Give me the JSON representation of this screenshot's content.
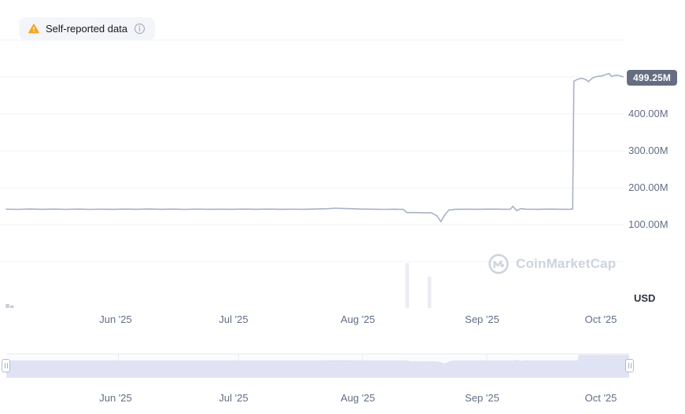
{
  "badge": {
    "text": "Self-reported data"
  },
  "watermark": {
    "text": "CoinMarketCap"
  },
  "colors": {
    "accent_line": "#a9b1c3",
    "current_badge_bg": "#656d80",
    "warning": "#f5a623",
    "axis_label": "#616e85",
    "grid": "#f1f3f7",
    "nav_fill": "#dfe3f3",
    "watermark": "#ced3dd"
  },
  "chart_data": {
    "type": "line",
    "title": "",
    "unit": "USD",
    "current_label": "499.25M",
    "yticks": [
      "400.00M",
      "300.00M",
      "200.00M",
      "100.00M"
    ],
    "ytick_values_m": [
      400,
      300,
      200,
      100
    ],
    "ylim_m": [
      0,
      600
    ],
    "xticks": [
      "Jun '25",
      "Jul '25",
      "Aug '25",
      "Sep '25",
      "Oct '25"
    ],
    "legend": "none",
    "grid": "horizontal",
    "series": [
      {
        "name": "Self-reported data",
        "unit": "millions USD",
        "points": [
          [
            0,
            142
          ],
          [
            3,
            141.5
          ],
          [
            6,
            142.4
          ],
          [
            9,
            141.7
          ],
          [
            12,
            142.2
          ],
          [
            15,
            141.5
          ],
          [
            18,
            142.1
          ],
          [
            21,
            141.4
          ],
          [
            24,
            142
          ],
          [
            27,
            141.6
          ],
          [
            30,
            142.2
          ],
          [
            33,
            141.6
          ],
          [
            36,
            142.3
          ],
          [
            39,
            141.7
          ],
          [
            42,
            142.1
          ],
          [
            45,
            141.5
          ],
          [
            48,
            142.2
          ],
          [
            51,
            141.7
          ],
          [
            54,
            142
          ],
          [
            57,
            141.6
          ],
          [
            60,
            142.1
          ],
          [
            63,
            141.7
          ],
          [
            66,
            142.2
          ],
          [
            69,
            141.6
          ],
          [
            72,
            142
          ],
          [
            75,
            141.7
          ],
          [
            78,
            142.4
          ],
          [
            81,
            143.2
          ],
          [
            83,
            144.6
          ],
          [
            85,
            143.9
          ],
          [
            87,
            143.1
          ],
          [
            89,
            142.4
          ],
          [
            92,
            142
          ],
          [
            95,
            141.5
          ],
          [
            98,
            141.9
          ],
          [
            100,
            141.2
          ],
          [
            101,
            132.5
          ],
          [
            103,
            132.8
          ],
          [
            105,
            132.2
          ],
          [
            107,
            132.6
          ],
          [
            108.5,
            124
          ],
          [
            109.5,
            108
          ],
          [
            110.5,
            127
          ],
          [
            111.5,
            139.5
          ],
          [
            113,
            141.6
          ],
          [
            116,
            142
          ],
          [
            119,
            141.6
          ],
          [
            122,
            142.1
          ],
          [
            125,
            141.8
          ],
          [
            127,
            142
          ],
          [
            127.6,
            149.5
          ],
          [
            128.6,
            138
          ],
          [
            129.6,
            143.5
          ],
          [
            131,
            142
          ],
          [
            134,
            141.8
          ],
          [
            137,
            142.2
          ],
          [
            140,
            141.7
          ],
          [
            142,
            142
          ],
          [
            142.7,
            142.3
          ],
          [
            143,
            489
          ],
          [
            144,
            494
          ],
          [
            145,
            496.5
          ],
          [
            146,
            493
          ],
          [
            146.7,
            487.5
          ],
          [
            147.4,
            495
          ],
          [
            148.2,
            500
          ],
          [
            149.2,
            502
          ],
          [
            150.2,
            503.5
          ],
          [
            151.2,
            507
          ],
          [
            151.9,
            509.5
          ],
          [
            152.5,
            501.5
          ],
          [
            153.2,
            504
          ],
          [
            154.1,
            504.5
          ],
          [
            155,
            502
          ],
          [
            155.6,
            500
          ]
        ]
      }
    ],
    "volume_bars": [
      {
        "d": 0.3,
        "h": 5,
        "dark": true
      },
      {
        "d": 1.4,
        "h": 3,
        "dark": true
      },
      {
        "d": 101,
        "h": 57
      },
      {
        "d": 106.6,
        "h": 40
      }
    ],
    "key_events": [
      {
        "when": "mid Aug '25",
        "what": "dip to ~108M"
      },
      {
        "when": "late Sep '25",
        "what": "jump from ~142M to ~499M"
      }
    ]
  }
}
